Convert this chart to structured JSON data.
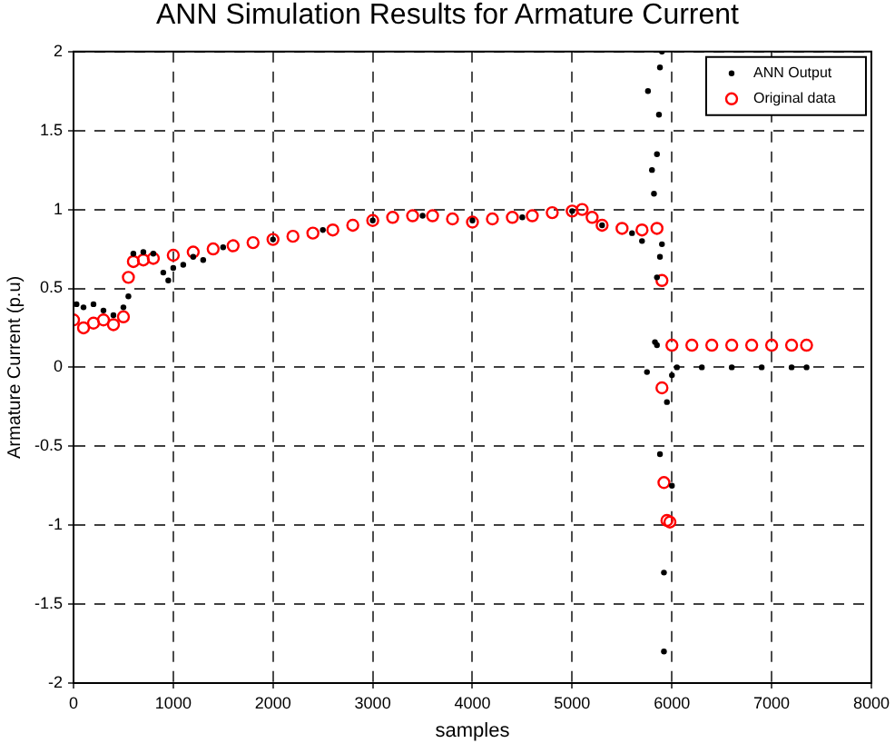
{
  "chart_data": {
    "type": "scatter",
    "title": "ANN Simulation Results for Armature Current",
    "xlabel": "samples",
    "ylabel": "Armature Current (p.u)",
    "xlim": [
      0,
      8000
    ],
    "ylim": [
      -2,
      2
    ],
    "xticks": [
      0,
      1000,
      2000,
      3000,
      4000,
      5000,
      6000,
      7000,
      8000
    ],
    "yticks": [
      -2,
      -1.5,
      -1,
      -0.5,
      0,
      0.5,
      1,
      1.5,
      2
    ],
    "grid": true,
    "legend": "top right",
    "marker": "circle",
    "series": [
      {
        "name": "ANN Output",
        "color": "#000000",
        "x": [
          30,
          100,
          200,
          300,
          400,
          500,
          550,
          600,
          700,
          800,
          900,
          950,
          1000,
          1100,
          1200,
          1300,
          1500,
          2000,
          2500,
          3000,
          3500,
          4000,
          4500,
          5000,
          5300,
          5600,
          5700,
          5760,
          5800,
          5820,
          5850,
          5870,
          5880,
          5900,
          5880,
          5850,
          5900,
          5830,
          5850,
          5750,
          5880,
          5950,
          6000,
          5920,
          5920,
          6000,
          6050,
          6300,
          6600,
          6900,
          7200,
          7350
        ],
        "values": [
          0.4,
          0.38,
          0.4,
          0.36,
          0.33,
          0.38,
          0.45,
          0.72,
          0.73,
          0.72,
          0.6,
          0.55,
          0.63,
          0.65,
          0.7,
          0.68,
          0.76,
          0.81,
          0.87,
          0.93,
          0.96,
          0.93,
          0.95,
          0.99,
          0.9,
          0.85,
          0.8,
          1.75,
          1.25,
          1.1,
          1.35,
          1.6,
          1.9,
          2.0,
          0.7,
          0.57,
          0.78,
          0.16,
          0.14,
          -0.03,
          -0.55,
          -0.22,
          -0.75,
          -1.3,
          -1.8,
          -0.05,
          0,
          0,
          0,
          0,
          0,
          0
        ]
      },
      {
        "name": "Original data",
        "color": "#ff0000",
        "x": [
          0,
          100,
          200,
          300,
          400,
          500,
          550,
          600,
          700,
          800,
          1000,
          1200,
          1400,
          1600,
          1800,
          2000,
          2200,
          2400,
          2600,
          2800,
          3000,
          3200,
          3400,
          3600,
          3800,
          4000,
          4200,
          4400,
          4600,
          4800,
          5000,
          5100,
          5200,
          5300,
          5500,
          5700,
          5850,
          5900,
          5900,
          5920,
          5950,
          5980,
          6000,
          6200,
          6400,
          6600,
          6800,
          7000,
          7200,
          7350
        ],
        "values": [
          0.3,
          0.25,
          0.28,
          0.3,
          0.27,
          0.32,
          0.57,
          0.67,
          0.68,
          0.69,
          0.71,
          0.73,
          0.75,
          0.77,
          0.79,
          0.81,
          0.83,
          0.85,
          0.87,
          0.9,
          0.93,
          0.95,
          0.96,
          0.96,
          0.94,
          0.92,
          0.94,
          0.95,
          0.96,
          0.98,
          0.99,
          1.0,
          0.95,
          0.9,
          0.88,
          0.87,
          0.88,
          0.55,
          -0.13,
          -0.73,
          -0.97,
          -0.98,
          0.14,
          0.14,
          0.14,
          0.14,
          0.14,
          0.14,
          0.14,
          0.14
        ]
      }
    ]
  }
}
